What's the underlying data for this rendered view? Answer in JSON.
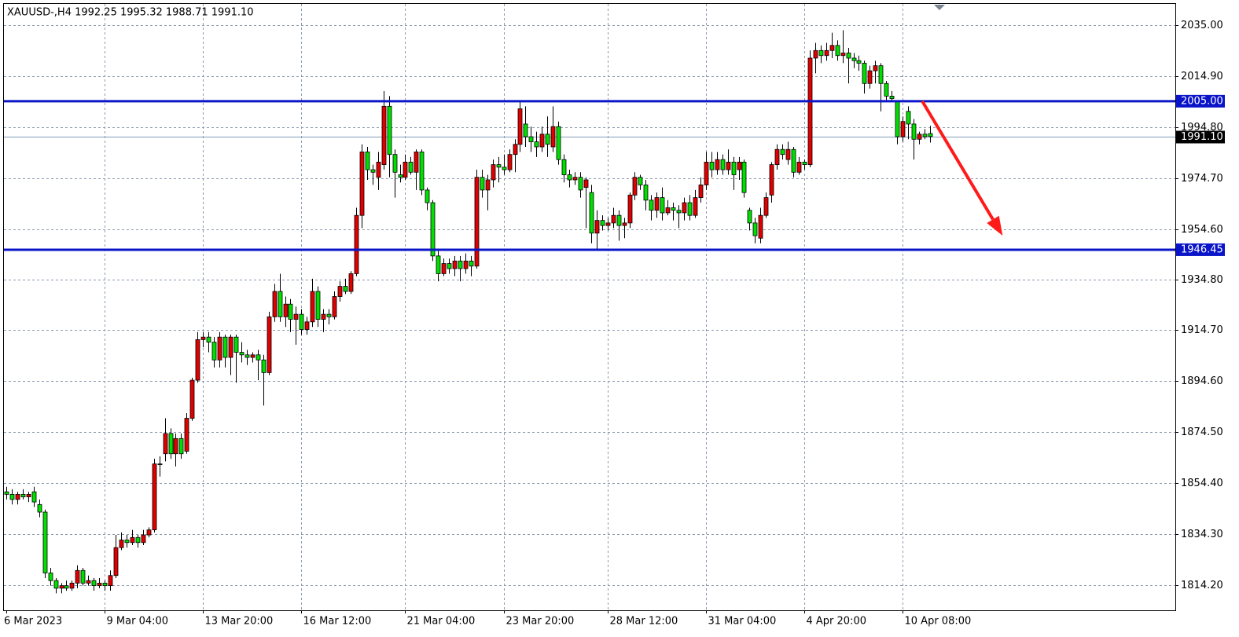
{
  "chart_data": {
    "type": "candlestick",
    "title": "XAUUSD-,H4  1992.25 1995.32 1988.71 1991.10",
    "up_color": "#e00000",
    "down_color": "#00e000",
    "grid": true,
    "xlim": [
      -0.43,
      213.9
    ],
    "xticks": [
      {
        "value": 0,
        "label": "6 Mar 2023"
      },
      {
        "value": 18,
        "label": "9 Mar 04:00"
      },
      {
        "value": 36,
        "label": "13 Mar 20:00"
      },
      {
        "value": 54,
        "label": "16 Mar 12:00"
      },
      {
        "value": 73,
        "label": "21 Mar 04:00"
      },
      {
        "value": 91,
        "label": "23 Mar 20:00"
      },
      {
        "value": 110,
        "label": "28 Mar 12:00"
      },
      {
        "value": 128,
        "label": "31 Mar 04:00"
      },
      {
        "value": 146,
        "label": "4 Apr 20:00"
      },
      {
        "value": 164,
        "label": "10 Apr 08:00"
      }
    ],
    "ylim": [
      1804.29,
      2043.36
    ],
    "yticks": [
      {
        "value": 2035,
        "label": "2035.00"
      },
      {
        "value": 2014.9,
        "label": "2014.90"
      },
      {
        "value": 1994.8,
        "label": "1994.80"
      },
      {
        "value": 1974.7,
        "label": "1974.70"
      },
      {
        "value": 1954.6,
        "label": "1954.60"
      },
      {
        "value": 1934.8,
        "label": "1934.80"
      },
      {
        "value": 1914.7,
        "label": "1914.70"
      },
      {
        "value": 1894.6,
        "label": "1894.60"
      },
      {
        "value": 1874.5,
        "label": "1874.50"
      },
      {
        "value": 1854.4,
        "label": "1854.40"
      },
      {
        "value": 1834.3,
        "label": "1834.30"
      },
      {
        "value": 1814.2,
        "label": "1814.20"
      }
    ],
    "levels": [
      {
        "value": 2005,
        "label": "2005.00",
        "color": "#0a14c8"
      },
      {
        "value": 1946.45,
        "label": "1946.45",
        "color": "#0a14c8"
      }
    ],
    "current_price": {
      "value": 1991.1,
      "label": "1991.10",
      "color": "#7f9db9"
    },
    "arrow": {
      "from": [
        167.6,
        2005
      ],
      "to": [
        182.3,
        1952
      ],
      "color": "#ff1a1a"
    },
    "candles": [
      [
        1851,
        1853,
        1848,
        1850
      ],
      [
        1850,
        1852,
        1846,
        1848
      ],
      [
        1848,
        1851,
        1846,
        1850
      ],
      [
        1850,
        1852,
        1848,
        1849
      ],
      [
        1849,
        1851,
        1847,
        1850
      ],
      [
        1851,
        1853,
        1845,
        1847
      ],
      [
        1846,
        1848,
        1841,
        1843
      ],
      [
        1843,
        1844,
        1817,
        1819
      ],
      [
        1819,
        1821,
        1814,
        1816
      ],
      [
        1816,
        1817,
        1811,
        1813
      ],
      [
        1813,
        1815,
        1811,
        1814
      ],
      [
        1814,
        1816,
        1812,
        1813
      ],
      [
        1813,
        1816,
        1812,
        1815
      ],
      [
        1815,
        1822,
        1813,
        1820
      ],
      [
        1820,
        1821,
        1814,
        1815
      ],
      [
        1815,
        1818,
        1814,
        1816
      ],
      [
        1816,
        1817,
        1812,
        1814
      ],
      [
        1814,
        1817,
        1813,
        1815
      ],
      [
        1815,
        1816,
        1812,
        1814
      ],
      [
        1814,
        1820,
        1812,
        1818
      ],
      [
        1818,
        1834,
        1817,
        1829
      ],
      [
        1829,
        1835,
        1828,
        1832
      ],
      [
        1832,
        1834,
        1829,
        1831
      ],
      [
        1831,
        1836,
        1830,
        1833
      ],
      [
        1833,
        1834,
        1829,
        1831
      ],
      [
        1831,
        1836,
        1830,
        1834
      ],
      [
        1834,
        1837,
        1833,
        1836
      ],
      [
        1836,
        1864,
        1835,
        1862
      ],
      [
        1862,
        1865,
        1857,
        1862
      ],
      [
        1866,
        1880,
        1863,
        1874
      ],
      [
        1874,
        1876,
        1864,
        1866
      ],
      [
        1866,
        1874,
        1861,
        1872
      ],
      [
        1872,
        1874,
        1864,
        1866
      ],
      [
        1867,
        1882,
        1866,
        1880
      ],
      [
        1880,
        1896,
        1879,
        1895
      ],
      [
        1895,
        1914,
        1894,
        1911
      ],
      [
        1911,
        1914,
        1908,
        1912
      ],
      [
        1912,
        1914,
        1906,
        1910
      ],
      [
        1910,
        1912,
        1900,
        1903
      ],
      [
        1903,
        1914,
        1900,
        1912
      ],
      [
        1912,
        1913,
        1900,
        1904
      ],
      [
        1904,
        1913,
        1897,
        1912
      ],
      [
        1912,
        1913,
        1894,
        1906
      ],
      [
        1906,
        1910,
        1902,
        1905
      ],
      [
        1905,
        1907,
        1901,
        1904
      ],
      [
        1904,
        1906,
        1902,
        1905
      ],
      [
        1905,
        1907,
        1895,
        1903
      ],
      [
        1903,
        1905,
        1885,
        1898
      ],
      [
        1898,
        1922,
        1897,
        1920
      ],
      [
        1920,
        1933,
        1918,
        1930
      ],
      [
        1930,
        1937,
        1918,
        1920
      ],
      [
        1920,
        1928,
        1916,
        1925
      ],
      [
        1925,
        1927,
        1914,
        1919
      ],
      [
        1919,
        1924,
        1909,
        1921
      ],
      [
        1921,
        1923,
        1913,
        1915
      ],
      [
        1915,
        1920,
        1913,
        1918
      ],
      [
        1918,
        1935,
        1916,
        1930
      ],
      [
        1930,
        1932,
        1916,
        1919
      ],
      [
        1919,
        1923,
        1914,
        1921
      ],
      [
        1921,
        1923,
        1917,
        1920
      ],
      [
        1920,
        1930,
        1919,
        1928
      ],
      [
        1928,
        1934,
        1926,
        1932
      ],
      [
        1932,
        1935,
        1929,
        1930
      ],
      [
        1930,
        1938,
        1929,
        1937
      ],
      [
        1937,
        1963,
        1936,
        1960
      ],
      [
        1960,
        1988,
        1955,
        1985
      ],
      [
        1985,
        1987,
        1974,
        1978
      ],
      [
        1978,
        1980,
        1972,
        1977
      ],
      [
        1975,
        1985,
        1970,
        1981
      ],
      [
        1980,
        2009,
        1978,
        2003
      ],
      [
        2003,
        2007,
        1975,
        1984
      ],
      [
        1984,
        1986,
        1967,
        1977
      ],
      [
        1976,
        1980,
        1973,
        1975
      ],
      [
        1975,
        1984,
        1974,
        1981
      ],
      [
        1981,
        1983,
        1976,
        1977
      ],
      [
        1977,
        1986,
        1970,
        1985
      ],
      [
        1985,
        1986,
        1968,
        1970
      ],
      [
        1970,
        1971,
        1962,
        1965
      ],
      [
        1965,
        1966,
        1942,
        1944
      ],
      [
        1944,
        1946,
        1934,
        1937
      ],
      [
        1937,
        1943,
        1936,
        1941
      ],
      [
        1941,
        1943,
        1937,
        1939
      ],
      [
        1939,
        1944,
        1936,
        1942
      ],
      [
        1942,
        1944,
        1934,
        1939
      ],
      [
        1939,
        1945,
        1937,
        1942
      ],
      [
        1942,
        1944,
        1936,
        1940
      ],
      [
        1940,
        1978,
        1939,
        1975
      ],
      [
        1975,
        1978,
        1967,
        1970
      ],
      [
        1970,
        1976,
        1962,
        1974
      ],
      [
        1974,
        1982,
        1971,
        1980
      ],
      [
        1980,
        1983,
        1973,
        1979
      ],
      [
        1979,
        1984,
        1976,
        1978
      ],
      [
        1978,
        1986,
        1977,
        1984
      ],
      [
        1984,
        1990,
        1977,
        1988
      ],
      [
        1988,
        2005,
        1985,
        2002
      ],
      [
        1996,
        2003,
        1987,
        1991
      ],
      [
        1991,
        1995,
        1985,
        1989
      ],
      [
        1989,
        1993,
        1983,
        1987
      ],
      [
        1987,
        1995,
        1985,
        1992
      ],
      [
        1992,
        1999,
        1983,
        1988
      ],
      [
        1987,
        2003,
        1985,
        1995
      ],
      [
        1995,
        1997,
        1980,
        1982
      ],
      [
        1982,
        1984,
        1973,
        1976
      ],
      [
        1976,
        1978,
        1971,
        1974
      ],
      [
        1974,
        1977,
        1972,
        1975
      ],
      [
        1975,
        1977,
        1967,
        1970
      ],
      [
        1971,
        1975,
        1955,
        1974
      ],
      [
        1969,
        1972,
        1949,
        1953
      ],
      [
        1953,
        1962,
        1946,
        1958
      ],
      [
        1958,
        1960,
        1954,
        1956
      ],
      [
        1956,
        1959,
        1954,
        1957
      ],
      [
        1957,
        1963,
        1955,
        1960
      ],
      [
        1960,
        1962,
        1950,
        1956
      ],
      [
        1956,
        1959,
        1951,
        1957
      ],
      [
        1957,
        1969,
        1955,
        1968
      ],
      [
        1968,
        1977,
        1966,
        1975
      ],
      [
        1975,
        1976,
        1970,
        1972
      ],
      [
        1972,
        1974,
        1962,
        1966
      ],
      [
        1966,
        1968,
        1958,
        1962
      ],
      [
        1962,
        1969,
        1959,
        1967
      ],
      [
        1967,
        1971,
        1958,
        1961
      ],
      [
        1961,
        1966,
        1960,
        1963
      ],
      [
        1963,
        1965,
        1958,
        1962
      ],
      [
        1962,
        1964,
        1955,
        1961
      ],
      [
        1961,
        1967,
        1958,
        1965
      ],
      [
        1965,
        1968,
        1958,
        1960
      ],
      [
        1960,
        1970,
        1959,
        1967
      ],
      [
        1967,
        1975,
        1965,
        1972
      ],
      [
        1972,
        1985,
        1970,
        1981
      ],
      [
        1981,
        1985,
        1975,
        1978
      ],
      [
        1978,
        1985,
        1976,
        1982
      ],
      [
        1982,
        1984,
        1976,
        1978
      ],
      [
        1978,
        1986,
        1976,
        1981
      ],
      [
        1981,
        1983,
        1970,
        1976
      ],
      [
        1978,
        1983,
        1974,
        1981
      ],
      [
        1981,
        1982,
        1967,
        1969
      ],
      [
        1962,
        1963,
        1954,
        1957
      ],
      [
        1957,
        1959,
        1949,
        1952
      ],
      [
        1951,
        1963,
        1949,
        1960
      ],
      [
        1960,
        1969,
        1959,
        1967
      ],
      [
        1968,
        1981,
        1965,
        1980
      ],
      [
        1980,
        1988,
        1978,
        1986
      ],
      [
        1986,
        1988,
        1982,
        1984
      ],
      [
        1982,
        1989,
        1980,
        1986
      ],
      [
        1986,
        1987,
        1975,
        1977
      ],
      [
        1977,
        1983,
        1976,
        1981
      ],
      [
        1981,
        1982,
        1978,
        1980
      ],
      [
        1980,
        2025,
        1979,
        2022
      ],
      [
        2022,
        2028,
        2016,
        2025
      ],
      [
        2025,
        2027,
        2020,
        2023
      ],
      [
        2023,
        2028,
        2021,
        2025
      ],
      [
        2025,
        2032,
        2022,
        2027
      ],
      [
        2027,
        2029,
        2021,
        2023
      ],
      [
        2023,
        2033,
        2020,
        2024
      ],
      [
        2024,
        2026,
        2012,
        2022
      ],
      [
        2022,
        2024,
        2018,
        2021
      ],
      [
        2021,
        2023,
        2017,
        2020
      ],
      [
        2020,
        2021,
        2008,
        2012
      ],
      [
        2012,
        2019,
        2010,
        2017
      ],
      [
        2017,
        2021,
        2012,
        2019
      ],
      [
        2019,
        2020,
        2001,
        2012
      ],
      [
        2012,
        2013,
        2005,
        2007
      ],
      [
        2007,
        2009,
        2005,
        2006
      ],
      [
        2005,
        2005,
        1988,
        1991
      ],
      [
        1991,
        1999,
        1989,
        1997
      ],
      [
        2001,
        2003,
        1990,
        1996
      ],
      [
        1996,
        1998,
        1982,
        1990
      ],
      [
        1990,
        1993,
        1988,
        1992
      ],
      [
        1992,
        1994,
        1990,
        1991
      ],
      [
        1992.25,
        1995.32,
        1988.71,
        1991.1
      ]
    ]
  }
}
